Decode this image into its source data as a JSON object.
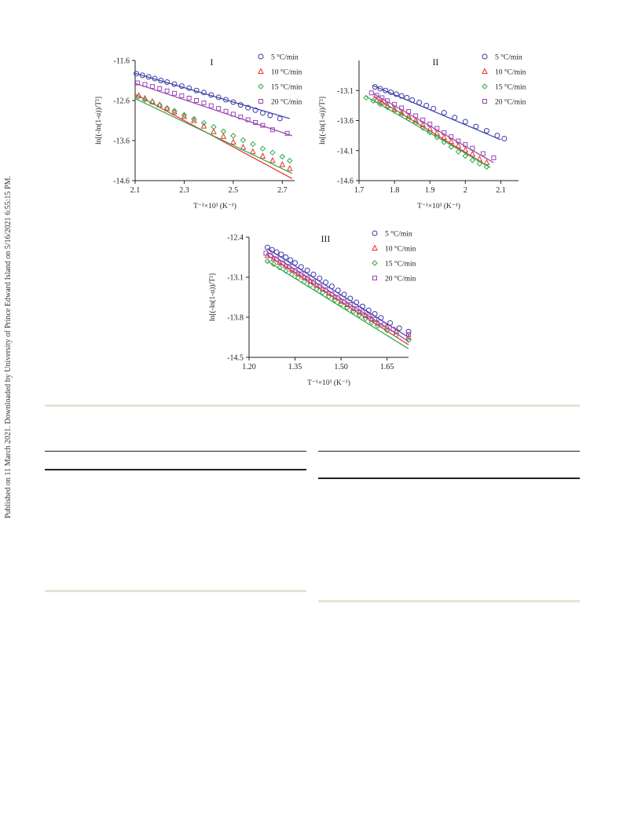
{
  "side_note": "Published on 11 March 2021. Downloaded by University of Prince Edward Island on 5/16/2021 6:55:15 PM.",
  "colors": {
    "s5": "#3a3aa8",
    "s10": "#e8322e",
    "s15": "#2eaa4a",
    "s20": "#9a46b4"
  },
  "chart_data": [
    {
      "type": "scatter",
      "title": "I",
      "xlabel": "T⁻¹×10³ (K⁻¹)",
      "ylabel": "ln[(-ln(1-α))/T²]",
      "xlim": [
        2.1,
        2.75
      ],
      "ylim": [
        -14.6,
        -11.6
      ],
      "xticks": [
        "2.1",
        "2.3",
        "2.5",
        "2.7"
      ],
      "xtick_values": [
        2.1,
        2.3,
        2.5,
        2.7
      ],
      "yticks": [
        "-11.6",
        "-12.6",
        "-13.6",
        "-14.6"
      ],
      "ytick_values": [
        -11.6,
        -12.6,
        -13.6,
        -14.6
      ],
      "legend_position": "top-right",
      "series": [
        {
          "name": "5 °C/min",
          "marker": "circle",
          "color_key": "s5",
          "x": [
            2.105,
            2.13,
            2.155,
            2.18,
            2.205,
            2.23,
            2.26,
            2.29,
            2.32,
            2.35,
            2.38,
            2.41,
            2.44,
            2.47,
            2.5,
            2.53,
            2.56,
            2.59,
            2.62,
            2.65,
            2.69
          ],
          "y": [
            -11.93,
            -11.97,
            -12.01,
            -12.05,
            -12.1,
            -12.14,
            -12.19,
            -12.24,
            -12.29,
            -12.35,
            -12.4,
            -12.46,
            -12.52,
            -12.58,
            -12.64,
            -12.71,
            -12.78,
            -12.84,
            -12.91,
            -12.97,
            -13.05
          ],
          "fit": [
            [
              2.1,
              -11.92
            ],
            [
              2.73,
              -13.05
            ]
          ]
        },
        {
          "name": "10 °C/min",
          "marker": "triangle",
          "color_key": "s10",
          "x": [
            2.115,
            2.14,
            2.17,
            2.2,
            2.23,
            2.26,
            2.3,
            2.34,
            2.38,
            2.42,
            2.46,
            2.5,
            2.54,
            2.58,
            2.62,
            2.66,
            2.7,
            2.73
          ],
          "y": [
            -12.48,
            -12.55,
            -12.63,
            -12.71,
            -12.8,
            -12.89,
            -13.0,
            -13.1,
            -13.24,
            -13.38,
            -13.5,
            -13.64,
            -13.77,
            -13.88,
            -13.99,
            -14.1,
            -14.2,
            -14.3
          ],
          "fit": [
            [
              2.1,
              -12.44
            ],
            [
              2.74,
              -14.55
            ]
          ]
        },
        {
          "name": "15 °C/min",
          "marker": "diamond",
          "color_key": "s15",
          "x": [
            2.11,
            2.14,
            2.17,
            2.2,
            2.23,
            2.26,
            2.3,
            2.34,
            2.38,
            2.42,
            2.46,
            2.5,
            2.54,
            2.58,
            2.62,
            2.66,
            2.7,
            2.73
          ],
          "y": [
            -12.52,
            -12.58,
            -12.64,
            -12.71,
            -12.79,
            -12.86,
            -12.96,
            -13.06,
            -13.16,
            -13.26,
            -13.37,
            -13.48,
            -13.59,
            -13.69,
            -13.8,
            -13.9,
            -14.0,
            -14.1
          ],
          "fit": [
            [
              2.1,
              -12.55
            ],
            [
              2.74,
              -14.42
            ]
          ]
        },
        {
          "name": "20 °C/min",
          "marker": "square",
          "color_key": "s20",
          "x": [
            2.11,
            2.14,
            2.17,
            2.2,
            2.23,
            2.26,
            2.29,
            2.32,
            2.35,
            2.38,
            2.41,
            2.44,
            2.47,
            2.5,
            2.53,
            2.56,
            2.59,
            2.62,
            2.66,
            2.72
          ],
          "y": [
            -12.16,
            -12.2,
            -12.25,
            -12.3,
            -12.36,
            -12.42,
            -12.48,
            -12.54,
            -12.6,
            -12.66,
            -12.73,
            -12.8,
            -12.87,
            -12.94,
            -13.01,
            -13.08,
            -13.15,
            -13.22,
            -13.33,
            -13.42
          ],
          "fit": [
            [
              2.1,
              -12.17
            ],
            [
              2.74,
              -13.48
            ]
          ]
        }
      ]
    },
    {
      "type": "scatter",
      "title": "II",
      "xlabel": "T⁻¹×10³ (K⁻¹)",
      "ylabel": "ln[(-ln(1-α))/T²]",
      "xlim": [
        1.7,
        2.15
      ],
      "ylim": [
        -14.6,
        -12.6
      ],
      "xticks": [
        "1.7",
        "1.8",
        "1.9",
        "2",
        "2.1"
      ],
      "xtick_values": [
        1.7,
        1.8,
        1.9,
        2.0,
        2.1
      ],
      "yticks": [
        "-13.1",
        "-13.6",
        "-14.1",
        "-14.6"
      ],
      "ytick_values": [
        -13.1,
        -13.6,
        -14.1,
        -14.6
      ],
      "legend_position": "top-right",
      "series": [
        {
          "name": "5 °C/min",
          "marker": "circle",
          "color_key": "s5",
          "x": [
            1.745,
            1.76,
            1.775,
            1.79,
            1.805,
            1.82,
            1.835,
            1.85,
            1.87,
            1.89,
            1.91,
            1.94,
            1.97,
            2.0,
            2.03,
            2.06,
            2.09,
            2.11
          ],
          "y": [
            -13.04,
            -13.07,
            -13.1,
            -13.13,
            -13.16,
            -13.19,
            -13.22,
            -13.26,
            -13.3,
            -13.35,
            -13.4,
            -13.47,
            -13.55,
            -13.62,
            -13.7,
            -13.77,
            -13.85,
            -13.9
          ],
          "fit": [
            [
              1.74,
              -13.02
            ],
            [
              2.1,
              -13.92
            ]
          ]
        },
        {
          "name": "10 °C/min",
          "marker": "triangle",
          "color_key": "s10",
          "x": [
            1.75,
            1.765,
            1.78,
            1.8,
            1.82,
            1.84,
            1.86,
            1.88,
            1.9,
            1.92,
            1.94,
            1.96,
            1.98,
            2.0,
            2.02,
            2.04,
            2.06
          ],
          "y": [
            -13.26,
            -13.3,
            -13.35,
            -13.41,
            -13.47,
            -13.53,
            -13.6,
            -13.67,
            -13.74,
            -13.81,
            -13.88,
            -13.95,
            -14.02,
            -14.09,
            -14.16,
            -14.24,
            -14.3
          ],
          "fit": [
            [
              1.74,
              -13.2
            ],
            [
              2.07,
              -14.38
            ]
          ]
        },
        {
          "name": "15 °C/min",
          "marker": "diamond",
          "color_key": "s15",
          "x": [
            1.72,
            1.74,
            1.76,
            1.78,
            1.8,
            1.82,
            1.84,
            1.86,
            1.88,
            1.9,
            1.92,
            1.94,
            1.96,
            1.98,
            2.0,
            2.02,
            2.04,
            2.06
          ],
          "y": [
            -13.22,
            -13.27,
            -13.33,
            -13.38,
            -13.44,
            -13.5,
            -13.57,
            -13.64,
            -13.72,
            -13.8,
            -13.88,
            -13.96,
            -14.04,
            -14.12,
            -14.19,
            -14.26,
            -14.32,
            -14.37
          ],
          "fit": [
            [
              1.72,
              -13.2
            ],
            [
              2.07,
              -14.38
            ]
          ]
        },
        {
          "name": "20 °C/min",
          "marker": "square",
          "color_key": "s20",
          "x": [
            1.735,
            1.75,
            1.765,
            1.78,
            1.8,
            1.82,
            1.84,
            1.86,
            1.88,
            1.9,
            1.92,
            1.94,
            1.96,
            1.98,
            2.0,
            2.02,
            2.05,
            2.08
          ],
          "y": [
            -13.14,
            -13.18,
            -13.22,
            -13.27,
            -13.33,
            -13.39,
            -13.45,
            -13.52,
            -13.59,
            -13.66,
            -13.73,
            -13.8,
            -13.87,
            -13.94,
            -14.0,
            -14.06,
            -14.15,
            -14.22
          ],
          "fit": [
            [
              1.74,
              -13.15
            ],
            [
              2.08,
              -14.3
            ]
          ]
        }
      ]
    },
    {
      "type": "scatter",
      "title": "III",
      "xlabel": "T⁻¹×10³ (K⁻¹)",
      "ylabel": "ln[(-ln(1-α))/T²]",
      "xlim": [
        1.2,
        1.72
      ],
      "ylim": [
        -14.5,
        -12.4
      ],
      "xticks": [
        "1.20",
        "1.35",
        "1.50",
        "1.65"
      ],
      "xtick_values": [
        1.2,
        1.35,
        1.5,
        1.65
      ],
      "yticks": [
        "-12.4",
        "-13.1",
        "-13.8",
        "-14.5"
      ],
      "ytick_values": [
        -12.4,
        -13.1,
        -13.8,
        -14.5
      ],
      "legend_position": "top-right",
      "series": [
        {
          "name": "5 °C/min",
          "marker": "circle",
          "color_key": "s5",
          "x": [
            1.26,
            1.275,
            1.29,
            1.305,
            1.32,
            1.335,
            1.35,
            1.37,
            1.39,
            1.41,
            1.43,
            1.45,
            1.47,
            1.49,
            1.51,
            1.53,
            1.55,
            1.57,
            1.59,
            1.61,
            1.63,
            1.66,
            1.69,
            1.72
          ],
          "y": [
            -12.58,
            -12.62,
            -12.66,
            -12.7,
            -12.75,
            -12.8,
            -12.85,
            -12.92,
            -12.98,
            -13.05,
            -13.12,
            -13.19,
            -13.26,
            -13.33,
            -13.4,
            -13.47,
            -13.54,
            -13.61,
            -13.68,
            -13.74,
            -13.81,
            -13.9,
            -13.99,
            -14.05
          ],
          "fit": [
            [
              1.26,
              -12.6
            ],
            [
              1.72,
              -14.15
            ]
          ]
        },
        {
          "name": "10 °C/min",
          "marker": "triangle",
          "color_key": "s10",
          "x": [
            1.26,
            1.28,
            1.3,
            1.32,
            1.34,
            1.36,
            1.38,
            1.4,
            1.42,
            1.44,
            1.46,
            1.48,
            1.5,
            1.52,
            1.54,
            1.56,
            1.58,
            1.6,
            1.62,
            1.65,
            1.68,
            1.72
          ],
          "y": [
            -12.72,
            -12.78,
            -12.84,
            -12.9,
            -12.97,
            -13.04,
            -13.1,
            -13.17,
            -13.24,
            -13.31,
            -13.38,
            -13.45,
            -13.52,
            -13.58,
            -13.65,
            -13.71,
            -13.77,
            -13.83,
            -13.9,
            -13.97,
            -14.05,
            -14.15
          ],
          "fit": [
            [
              1.26,
              -12.72
            ],
            [
              1.72,
              -14.28
            ]
          ]
        },
        {
          "name": "15 °C/min",
          "marker": "diamond",
          "color_key": "s15",
          "x": [
            1.26,
            1.28,
            1.3,
            1.32,
            1.34,
            1.36,
            1.38,
            1.4,
            1.42,
            1.44,
            1.46,
            1.48,
            1.5,
            1.52,
            1.54,
            1.56,
            1.58,
            1.6,
            1.62,
            1.65,
            1.68,
            1.72
          ],
          "y": [
            -12.82,
            -12.87,
            -12.93,
            -12.99,
            -13.05,
            -13.11,
            -13.18,
            -13.24,
            -13.31,
            -13.37,
            -13.44,
            -13.5,
            -13.57,
            -13.63,
            -13.7,
            -13.76,
            -13.82,
            -13.89,
            -13.95,
            -14.03,
            -14.11,
            -14.2
          ],
          "fit": [
            [
              1.26,
              -12.82
            ],
            [
              1.72,
              -14.35
            ]
          ]
        },
        {
          "name": "20 °C/min",
          "marker": "square",
          "color_key": "s20",
          "x": [
            1.255,
            1.27,
            1.29,
            1.31,
            1.33,
            1.35,
            1.37,
            1.39,
            1.41,
            1.43,
            1.45,
            1.47,
            1.49,
            1.51,
            1.53,
            1.55,
            1.57,
            1.59,
            1.61,
            1.64,
            1.67,
            1.72
          ],
          "y": [
            -12.68,
            -12.72,
            -12.78,
            -12.85,
            -12.91,
            -12.98,
            -13.04,
            -13.11,
            -13.18,
            -13.25,
            -13.32,
            -13.39,
            -13.45,
            -13.52,
            -13.58,
            -13.65,
            -13.71,
            -13.78,
            -13.84,
            -13.93,
            -14.01,
            -14.1
          ],
          "fit": [
            [
              1.26,
              -12.66
            ],
            [
              1.72,
              -14.22
            ]
          ]
        }
      ]
    }
  ]
}
